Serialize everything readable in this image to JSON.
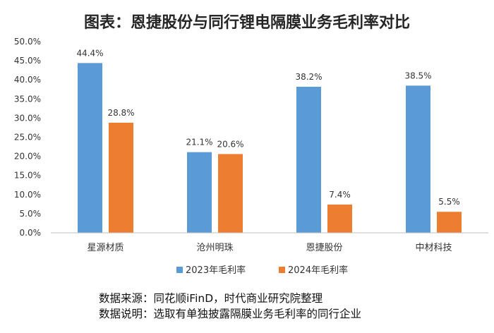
{
  "chart_data": {
    "type": "bar",
    "title": "图表：恩捷股份与同行锂电隔膜业务毛利率对比",
    "categories": [
      "星源材质",
      "沧州明珠",
      "恩捷股份",
      "中材科技"
    ],
    "series": [
      {
        "name": "2023年毛利率",
        "values": [
          44.4,
          21.1,
          38.2,
          38.5
        ],
        "labels": [
          "44.4%",
          "21.1%",
          "38.2%",
          "38.5%"
        ],
        "color": "#5b9bd5"
      },
      {
        "name": "2024年毛利率",
        "values": [
          28.8,
          20.6,
          7.4,
          5.5
        ],
        "labels": [
          "28.8%",
          "20.6%",
          "7.4%",
          "5.5%"
        ],
        "color": "#ed7d31"
      }
    ],
    "ylim": [
      0,
      50
    ],
    "yticks": [
      "0.0%",
      "5.0%",
      "10.0%",
      "15.0%",
      "20.0%",
      "25.0%",
      "30.0%",
      "35.0%",
      "40.0%",
      "45.0%",
      "50.0%"
    ],
    "grid": false,
    "legend_position": "bottom"
  },
  "notes": {
    "source": "数据来源：同花顺iFinD，时代商业研究院整理",
    "explanation": "数据说明：选取有单独披露隔膜业务毛利率的同行企业"
  }
}
